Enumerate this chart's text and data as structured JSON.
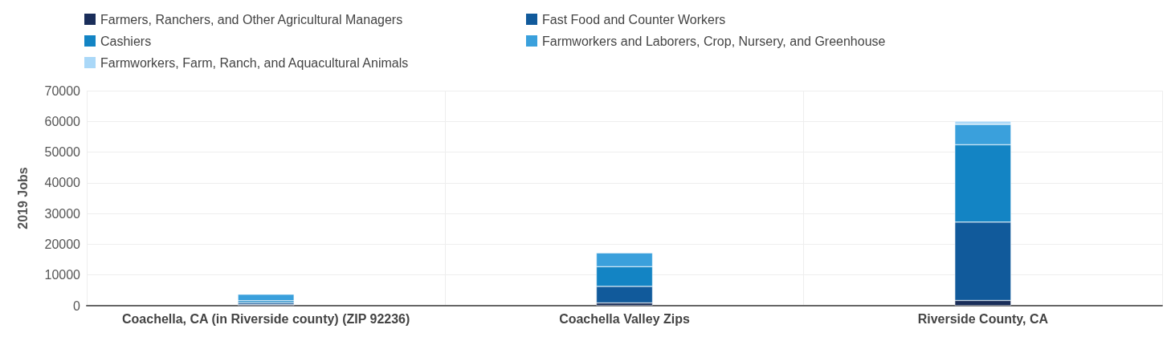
{
  "chart_data": {
    "type": "bar",
    "stacked": true,
    "ylabel": "2019 Jobs",
    "categories": [
      "Coachella, CA (in Riverside county) (ZIP 92236)",
      "Coachella Valley Zips",
      "Riverside County, CA"
    ],
    "series": [
      {
        "name": "Farmers, Ranchers, and Other Agricultural Managers",
        "color": "#1a2e5a",
        "values": [
          400,
          900,
          1700
        ]
      },
      {
        "name": "Fast Food and Counter Workers",
        "color": "#115a9b",
        "values": [
          600,
          5400,
          25500
        ]
      },
      {
        "name": "Cashiers",
        "color": "#1384c4",
        "values": [
          600,
          6400,
          25200
        ]
      },
      {
        "name": "Farmworkers and Laborers, Crop, Nursery, and Greenhouse",
        "color": "#3aa0dc",
        "values": [
          2100,
          4500,
          6600
        ]
      },
      {
        "name": "Farmworkers, Farm, Ranch, and Aquacultural Animals",
        "color": "#aad8f8",
        "values": [
          null,
          null,
          1100
        ]
      }
    ],
    "ylim": [
      0,
      70000
    ],
    "yticks": [
      0,
      10000,
      20000,
      30000,
      40000,
      50000,
      60000,
      70000
    ],
    "grid": true,
    "legend": "top left"
  }
}
